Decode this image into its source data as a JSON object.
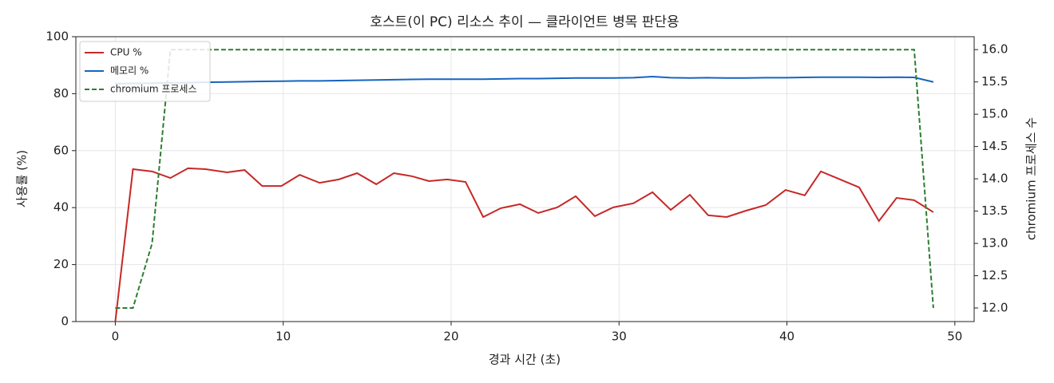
{
  "chart_data": {
    "type": "line",
    "title": "호스트(이 PC) 리소스 추이 — 클라이언트 병목 판단용",
    "x_label": "경과 시간 (초)",
    "y_label": "사용률 (%)",
    "y2_label": "chromium 프로세스 수",
    "x": [
      0,
      1.05,
      2.19,
      3.28,
      4.33,
      5.37,
      6.65,
      7.7,
      8.75,
      9.89,
      10.98,
      12.17,
      13.31,
      14.4,
      15.54,
      16.59,
      17.68,
      18.68,
      19.77,
      20.86,
      21.91,
      22.96,
      24.1,
      25.19,
      26.33,
      27.42,
      28.56,
      29.66,
      30.85,
      31.99,
      33.08,
      34.22,
      35.31,
      36.41,
      37.55,
      38.74,
      39.92,
      41.06,
      42.02,
      43.16,
      44.3,
      45.48,
      46.53,
      47.58,
      48.72
    ],
    "series": [
      {
        "name": "CPU %",
        "color": "#c62828",
        "dashed": false,
        "values": [
          0,
          53.5,
          52.7,
          50.4,
          53.8,
          53.5,
          52.4,
          53.2,
          47.6,
          47.6,
          51.5,
          48.7,
          49.9,
          52.1,
          48.2,
          52.1,
          51.0,
          49.3,
          49.9,
          49.0,
          36.7,
          39.8,
          41.2,
          38.1,
          40.1,
          44.0,
          37.0,
          40.1,
          41.5,
          45.4,
          39.2,
          44.5,
          37.3,
          36.7,
          38.9,
          40.9,
          46.2,
          44.3,
          52.7,
          49.9,
          47.1,
          35.3,
          43.4,
          42.6,
          38.4
        ]
      },
      {
        "name": "메모리 %",
        "color": "#1565c0",
        "dashed": false,
        "values": [
          83.5,
          83.6,
          83.7,
          83.8,
          83.9,
          84.0,
          84.1,
          84.2,
          84.3,
          84.4,
          84.5,
          84.5,
          84.6,
          84.7,
          84.8,
          84.9,
          85.0,
          85.1,
          85.1,
          85.1,
          85.1,
          85.2,
          85.3,
          85.3,
          85.4,
          85.5,
          85.5,
          85.5,
          85.6,
          86.0,
          85.6,
          85.5,
          85.6,
          85.5,
          85.5,
          85.6,
          85.6,
          85.7,
          85.8,
          85.8,
          85.8,
          85.7,
          85.8,
          85.7,
          84.1
        ]
      },
      {
        "name": "chromium 프로세스",
        "color": "#2e7d32",
        "dashed": true,
        "axis": "y2",
        "values": [
          12,
          12,
          13,
          16,
          16,
          16,
          16,
          16,
          16,
          16,
          16,
          16,
          16,
          16,
          16,
          16,
          16,
          16,
          16,
          16,
          16,
          16,
          16,
          16,
          16,
          16,
          16,
          16,
          16,
          16,
          16,
          16,
          16,
          16,
          16,
          16,
          16,
          16,
          16,
          16,
          16,
          16,
          16,
          16,
          12
        ]
      }
    ],
    "xlim": [
      -2.35,
      51.15
    ],
    "xticks": [
      0,
      10,
      20,
      30,
      40,
      50
    ],
    "ylim": [
      0,
      100
    ],
    "yticks": [
      0,
      20,
      40,
      60,
      80,
      100
    ],
    "y2lim": [
      11.79,
      16.2
    ],
    "y2ticks": [
      {
        "value": 12,
        "label": "12.0"
      },
      {
        "value": 12.5,
        "label": "12.5"
      },
      {
        "value": 13,
        "label": "13.0"
      },
      {
        "value": 13.5,
        "label": "13.5"
      },
      {
        "value": 14,
        "label": "14.0"
      },
      {
        "value": 14.5,
        "label": "14.5"
      },
      {
        "value": 15,
        "label": "15.0"
      },
      {
        "value": 15.5,
        "label": "15.5"
      },
      {
        "value": 16,
        "label": "16.0"
      }
    ],
    "grid": true,
    "legend": "upper left"
  }
}
